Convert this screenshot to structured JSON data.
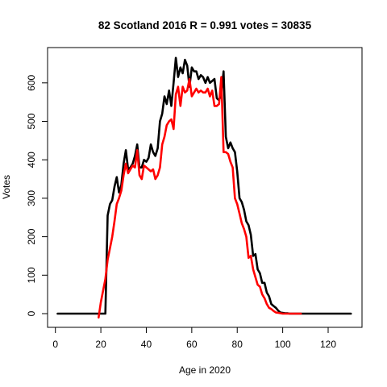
{
  "chart_data": {
    "type": "line",
    "title": "82 Scotland 2016 R = 0.991 votes = 30835",
    "xlabel": "Age in 2020",
    "ylabel": "Votes",
    "xlim": [
      1,
      130
    ],
    "ylim": [
      -10,
      675
    ],
    "xticks": [
      0,
      20,
      40,
      60,
      80,
      100,
      120
    ],
    "yticks": [
      0,
      100,
      200,
      300,
      400,
      500,
      600
    ],
    "grid": false,
    "legend": "none",
    "series": [
      {
        "color": "#000000",
        "x": [
          1,
          2,
          3,
          4,
          5,
          6,
          7,
          8,
          9,
          10,
          11,
          12,
          13,
          14,
          15,
          16,
          17,
          18,
          19,
          20,
          21,
          22,
          23,
          24,
          25,
          26,
          27,
          28,
          29,
          30,
          31,
          32,
          33,
          34,
          35,
          36,
          37,
          38,
          39,
          40,
          41,
          42,
          43,
          44,
          45,
          46,
          47,
          48,
          49,
          50,
          51,
          52,
          53,
          54,
          55,
          56,
          57,
          58,
          59,
          60,
          61,
          62,
          63,
          64,
          65,
          66,
          67,
          68,
          69,
          70,
          71,
          72,
          73,
          74,
          75,
          76,
          77,
          78,
          79,
          80,
          81,
          82,
          83,
          84,
          85,
          86,
          87,
          88,
          89,
          90,
          91,
          92,
          93,
          94,
          95,
          96,
          97,
          98,
          99,
          100,
          101,
          102,
          103,
          104,
          105,
          106,
          107,
          108,
          109,
          110,
          112,
          115,
          118,
          120,
          122,
          125,
          128,
          130
        ],
        "y": [
          0,
          0,
          0,
          0,
          0,
          0,
          0,
          0,
          0,
          0,
          0,
          0,
          0,
          0,
          0,
          0,
          0,
          0,
          0,
          0,
          0,
          0,
          255,
          285,
          295,
          330,
          355,
          315,
          335,
          390,
          425,
          375,
          380,
          390,
          410,
          440,
          380,
          380,
          400,
          395,
          405,
          440,
          420,
          410,
          430,
          500,
          520,
          565,
          545,
          580,
          540,
          600,
          665,
          615,
          640,
          625,
          660,
          645,
          590,
          640,
          630,
          630,
          610,
          620,
          615,
          600,
          615,
          600,
          605,
          610,
          560,
          555,
          570,
          630,
          460,
          430,
          445,
          430,
          420,
          370,
          300,
          290,
          270,
          240,
          230,
          205,
          150,
          155,
          115,
          105,
          80,
          80,
          55,
          45,
          25,
          20,
          15,
          8,
          3,
          2,
          1,
          1,
          0,
          0,
          0,
          0,
          0,
          0,
          0,
          0,
          0,
          0,
          0,
          0,
          0,
          0,
          0,
          0
        ]
      },
      {
        "color": "#ff0000",
        "x": [
          19,
          20,
          21,
          22,
          23,
          24,
          25,
          26,
          27,
          28,
          29,
          30,
          31,
          32,
          33,
          34,
          35,
          36,
          37,
          38,
          39,
          40,
          41,
          42,
          43,
          44,
          45,
          46,
          47,
          48,
          49,
          50,
          51,
          52,
          53,
          54,
          55,
          56,
          57,
          58,
          59,
          60,
          61,
          62,
          63,
          64,
          65,
          66,
          67,
          68,
          69,
          70,
          71,
          72,
          73,
          74,
          75,
          76,
          77,
          78,
          79,
          80,
          81,
          82,
          83,
          84,
          85,
          86,
          87,
          88,
          89,
          90,
          91,
          92,
          93,
          94,
          95,
          96,
          97,
          98,
          99,
          100,
          101,
          102,
          103,
          104,
          105,
          106,
          107,
          108
        ],
        "y": [
          -10,
          30,
          60,
          90,
          140,
          170,
          200,
          240,
          285,
          300,
          320,
          360,
          390,
          365,
          375,
          385,
          380,
          425,
          360,
          350,
          385,
          380,
          375,
          370,
          375,
          350,
          360,
          380,
          440,
          460,
          490,
          500,
          505,
          480,
          570,
          590,
          540,
          590,
          575,
          580,
          610,
          565,
          575,
          585,
          575,
          580,
          575,
          575,
          585,
          565,
          580,
          540,
          540,
          545,
          615,
          420,
          420,
          415,
          395,
          380,
          300,
          285,
          260,
          235,
          220,
          200,
          145,
          150,
          115,
          95,
          75,
          70,
          50,
          40,
          25,
          15,
          12,
          7,
          3,
          2,
          1,
          0,
          0,
          0,
          0,
          0,
          0,
          0,
          0,
          0
        ]
      }
    ]
  }
}
